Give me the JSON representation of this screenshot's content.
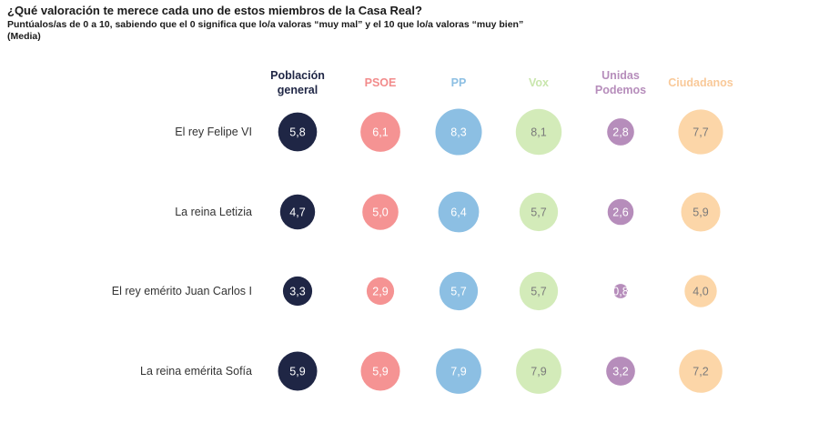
{
  "header": {
    "title": "¿Qué valoración te merece cada uno de estos miembros de la Casa Real?",
    "subtitle": "Puntúalos/as de 0 a 10, sabiendo que el 0 significa que lo/a valoras “muy mal” y el 10 que lo/a valoras “muy bien”",
    "note": "(Media)"
  },
  "chart_data": {
    "type": "bubble-table",
    "title": "¿Qué valoración te merece cada uno de estos miembros de la Casa Real?",
    "subtitle": "Puntúalos/as de 0 a 10, sabiendo que el 0 significa que lo/a valoras “muy mal” y el 10 que lo/a valoras “muy bien”",
    "scale": [
      0,
      10
    ],
    "rows": [
      "El rey Felipe VI",
      "La reina Letizia",
      "El rey emérito Juan Carlos I",
      "La reina emérita Sofía"
    ],
    "series": [
      {
        "name": "Población general",
        "header_lines": [
          "Población",
          "general"
        ],
        "color": "#1f2645",
        "header_color": "#1f2645",
        "text_color": "#ffffff",
        "values": [
          5.8,
          4.7,
          3.3,
          5.9
        ],
        "labels": [
          "5,8",
          "4,7",
          "3,3",
          "5,9"
        ]
      },
      {
        "name": "PSOE",
        "header_lines": [
          "PSOE"
        ],
        "color": "#f59393",
        "header_color": "#f28b8b",
        "text_color": "#ffffff",
        "values": [
          6.1,
          5.0,
          2.9,
          5.9
        ],
        "labels": [
          "6,1",
          "5,0",
          "2,9",
          "5,9"
        ]
      },
      {
        "name": "PP",
        "header_lines": [
          "PP"
        ],
        "color": "#8cbfe3",
        "header_color": "#8cbfe3",
        "text_color": "#ffffff",
        "values": [
          8.3,
          6.4,
          5.7,
          7.9
        ],
        "labels": [
          "8,3",
          "6,4",
          "5,7",
          "7,9"
        ]
      },
      {
        "name": "Vox",
        "header_lines": [
          "Vox"
        ],
        "color": "#d3ebb9",
        "header_color": "#c9e6ad",
        "text_color": "#7a7a7a",
        "values": [
          8.1,
          5.7,
          5.7,
          7.9
        ],
        "labels": [
          "8,1",
          "5,7",
          "5,7",
          "7,9"
        ]
      },
      {
        "name": "Unidas Podemos",
        "header_lines": [
          "Unidas",
          "Podemos"
        ],
        "color": "#b68dbb",
        "header_color": "#b68dbb",
        "text_color": "#ffffff",
        "values": [
          2.8,
          2.6,
          0.8,
          3.2
        ],
        "labels": [
          "2,8",
          "2,6",
          "0,8",
          "3,2"
        ]
      },
      {
        "name": "Ciudadanos",
        "header_lines": [
          "Ciudadanos"
        ],
        "color": "#fcd6a8",
        "header_color": "#f9c999",
        "text_color": "#7a7a7a",
        "values": [
          7.7,
          5.9,
          4.0,
          7.2
        ],
        "labels": [
          "7,7",
          "5,9",
          "4,0",
          "7,2"
        ]
      }
    ]
  }
}
